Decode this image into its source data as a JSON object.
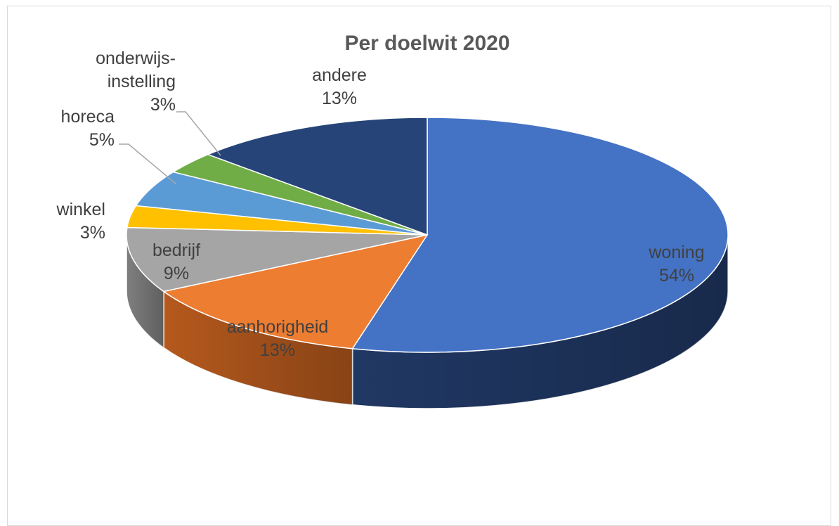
{
  "chart_data": {
    "type": "pie",
    "title": "Per doelwit 2020",
    "slices": [
      {
        "label": "woning",
        "percent_label": "54%",
        "value": 54,
        "color": "#4472c4",
        "side_color": "#203864"
      },
      {
        "label": "aanhorigheid",
        "percent_label": "13%",
        "value": 13,
        "color": "#ed7d31",
        "side_color": "#b5591d"
      },
      {
        "label": "bedrijf",
        "percent_label": "9%",
        "value": 9,
        "color": "#a5a5a5",
        "side_color": "#7f7f7f"
      },
      {
        "label": "winkel",
        "percent_label": "3%",
        "value": 3,
        "color": "#ffc000",
        "side_color": "#c69300"
      },
      {
        "label": "horeca",
        "percent_label": "5%",
        "value": 5,
        "color": "#5b9bd5",
        "side_color": "#3f72a0"
      },
      {
        "label": "onderwijs-\ninstelling",
        "percent_label": "3%",
        "value": 3,
        "color": "#70ad47",
        "side_color": "#4e7d31"
      },
      {
        "label": "andere",
        "percent_label": "13%",
        "value": 13,
        "color": "#264478",
        "side_color": "#172a4b"
      }
    ],
    "legend": "none",
    "data_labels": "category-name-and-percentage",
    "style": "3d-pie"
  }
}
